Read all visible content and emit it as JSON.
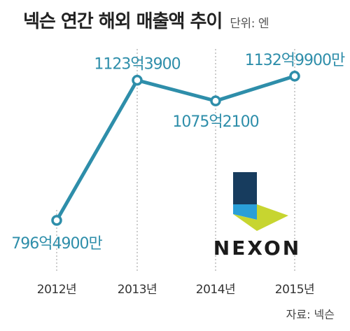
{
  "header": {
    "title": "넥슨 연간 해외 매출액 추이",
    "unit": "단위: 엔"
  },
  "source": "자료: 넥슨",
  "logo": {
    "wordmark": "NEXON"
  },
  "colors": {
    "line": "#2e8eaa",
    "marker_fill": "#ffffff",
    "gridline": "#999999",
    "logo_dark": "#173c5e",
    "logo_blue": "#2a9fd8",
    "logo_green": "#c7d530"
  },
  "chart_data": {
    "type": "line",
    "title": "넥슨 연간 해외 매출액 추이",
    "unit": "단위: 엔",
    "categories": [
      "2012년",
      "2013년",
      "2014년",
      "2015년"
    ],
    "values": [
      79649000000,
      112339000000,
      107521000000,
      113299000000
    ],
    "value_labels": [
      "796억4900만",
      "1123억3900",
      "1075억2100",
      "1132억9900만"
    ],
    "ylim": [
      70000000000,
      118000000000
    ],
    "grid": "dotted vertical lines at each category"
  }
}
